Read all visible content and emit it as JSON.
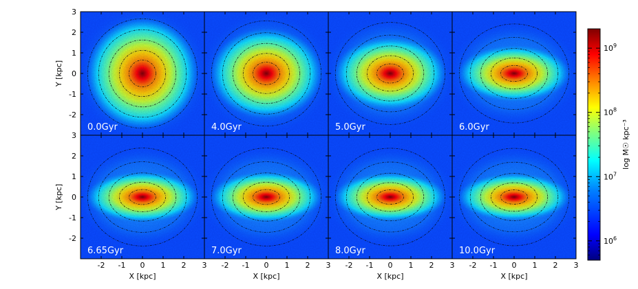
{
  "chart_data": {
    "type": "heatmap",
    "layout": {
      "rows": 2,
      "cols": 4
    },
    "xlabel": "X [kpc]",
    "ylabel": "Y [kpc]",
    "xlim": [
      -3,
      3
    ],
    "ylim": [
      -3,
      3
    ],
    "xticks": [
      -2,
      -1,
      0,
      1,
      2,
      3
    ],
    "yticks": [
      -2,
      -1,
      0,
      1,
      2,
      3
    ],
    "panels": [
      {
        "label": "0.0Gyr",
        "axis_ratio": 1.0
      },
      {
        "label": "4.0Gyr",
        "axis_ratio": 0.8
      },
      {
        "label": "5.0Gyr",
        "axis_ratio": 0.65
      },
      {
        "label": "6.0Gyr",
        "axis_ratio": 0.5
      },
      {
        "label": "6.65Gyr",
        "axis_ratio": 0.45
      },
      {
        "label": "7.0Gyr",
        "axis_ratio": 0.45
      },
      {
        "label": "8.0Gyr",
        "axis_ratio": 0.43
      },
      {
        "label": "10.0Gyr",
        "axis_ratio": 0.42
      }
    ],
    "colorbar": {
      "label": "log M☉ kpc⁻³",
      "scale": "log",
      "range": [
        500000,
        2000000000
      ],
      "ticks": [
        {
          "value": 1000000000,
          "mantissa": "10",
          "exp": "9"
        },
        {
          "value": 100000000,
          "mantissa": "10",
          "exp": "8"
        },
        {
          "value": 10000000,
          "mantissa": "10",
          "exp": "7"
        },
        {
          "value": 1000000,
          "mantissa": "10",
          "exp": "6"
        }
      ],
      "colormap": [
        "#00007f",
        "#0000ff",
        "#007fff",
        "#00ffff",
        "#7fff7f",
        "#ffff00",
        "#ff7f00",
        "#ff0000",
        "#7f0000"
      ]
    }
  }
}
